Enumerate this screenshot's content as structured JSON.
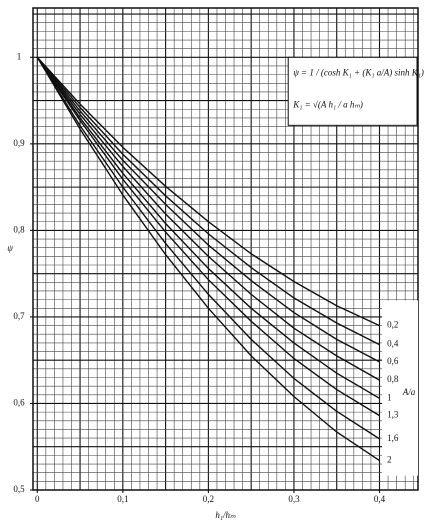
{
  "chart_data": {
    "type": "line",
    "x_label": "h₁/hₘ",
    "y_label": "ψ",
    "formula": [
      "ψ = 1 / (cosh K₁ + (K₁ a/A) sinh K₁)",
      "K₁ = √(A h₁ / a hₘ)"
    ],
    "legend_title": "A/a",
    "x": [
      0,
      0.05,
      0.1,
      0.15,
      0.2,
      0.25,
      0.3,
      0.35,
      0.4
    ],
    "series": [
      {
        "name": "0,2",
        "color": "#111111",
        "values": [
          1,
          0.946,
          0.896,
          0.851,
          0.81,
          0.773,
          0.741,
          0.713,
          0.69
        ]
      },
      {
        "name": "0,4",
        "color": "#111111",
        "values": [
          1,
          0.942,
          0.888,
          0.84,
          0.796,
          0.757,
          0.722,
          0.693,
          0.668
        ]
      },
      {
        "name": "0,6",
        "color": "#111111",
        "values": [
          1,
          0.938,
          0.881,
          0.83,
          0.783,
          0.742,
          0.705,
          0.674,
          0.648
        ]
      },
      {
        "name": "0,8",
        "color": "#111111",
        "values": [
          1,
          0.934,
          0.874,
          0.819,
          0.77,
          0.726,
          0.687,
          0.655,
          0.627
        ]
      },
      {
        "name": "1",
        "color": "#111111",
        "values": [
          1,
          0.93,
          0.866,
          0.808,
          0.756,
          0.71,
          0.67,
          0.635,
          0.606
        ]
      },
      {
        "name": "1,3",
        "color": "#111111",
        "values": [
          1,
          0.927,
          0.859,
          0.798,
          0.743,
          0.695,
          0.652,
          0.616,
          0.586
        ]
      },
      {
        "name": "1,6",
        "color": "#111111",
        "values": [
          1,
          0.921,
          0.85,
          0.785,
          0.726,
          0.674,
          0.629,
          0.591,
          0.559
        ]
      },
      {
        "name": "2",
        "color": "#111111",
        "values": [
          1,
          0.917,
          0.841,
          0.772,
          0.71,
          0.655,
          0.608,
          0.567,
          0.534
        ]
      }
    ],
    "xlim": [
      -0.005,
      0.445
    ],
    "ylim": [
      0.5,
      1.057
    ],
    "xticks": [
      0,
      {
        "value": 0.1,
        "label": "0,1"
      },
      {
        "value": 0.2,
        "label": "0,2"
      },
      {
        "value": 0.3,
        "label": "0,3"
      },
      {
        "value": 0.4,
        "label": "0,4"
      }
    ],
    "yticks": [
      {
        "value": 0.5,
        "label": "0,5"
      },
      {
        "value": 0.6,
        "label": "0,6"
      },
      {
        "value": 0.7,
        "label": "0,7"
      },
      {
        "value": 0.8,
        "label": "0,8"
      },
      {
        "value": 0.9,
        "label": "0,9"
      },
      1
    ],
    "grid": true,
    "minor_grid": 0.01
  }
}
